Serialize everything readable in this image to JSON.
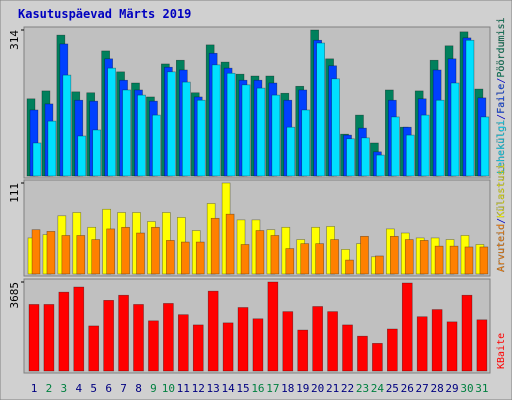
{
  "chart_data": [
    {
      "type": "bar",
      "title": "Kasutuspäevad Märts 2019",
      "legend_separator": "/",
      "ylim": [
        0,
        314
      ],
      "yticks": [
        314
      ],
      "series": [
        {
          "name": "Pöördumisi",
          "color": "#00805c",
          "values": [
            166,
            183,
            303,
            181,
            179,
            269,
            224,
            200,
            170,
            241,
            249,
            179,
            282,
            245,
            219,
            215,
            215,
            178,
            193,
            314,
            252,
            90,
            131,
            71,
            185,
            105,
            183,
            249,
            280,
            310,
            187
          ]
        },
        {
          "name": "Faile",
          "color": "#0040ff",
          "values": [
            142,
            155,
            284,
            163,
            161,
            252,
            206,
            185,
            161,
            234,
            228,
            170,
            264,
            232,
            206,
            206,
            200,
            163,
            185,
            292,
            237,
            88,
            103,
            52,
            163,
            105,
            166,
            228,
            252,
            297,
            168
          ]
        },
        {
          "name": "Lehekülgi",
          "color": "#00e0ff",
          "values": [
            71,
            118,
            217,
            86,
            99,
            232,
            185,
            174,
            131,
            224,
            202,
            163,
            239,
            221,
            196,
            189,
            174,
            105,
            142,
            286,
            209,
            80,
            82,
            45,
            127,
            88,
            131,
            163,
            200,
            292,
            127
          ]
        }
      ]
    },
    {
      "type": "bar",
      "ylim": [
        0,
        111
      ],
      "yticks": [
        111
      ],
      "series": [
        {
          "name": "Külastusi",
          "color": "#ffff00",
          "values": [
            44,
            48,
            71,
            75,
            57,
            79,
            75,
            75,
            64,
            75,
            69,
            53,
            86,
            111,
            66,
            66,
            54,
            57,
            42,
            57,
            58,
            30,
            37,
            21,
            55,
            50,
            44,
            44,
            42,
            47,
            36
          ]
        },
        {
          "name": "Arvuteid",
          "color": "#ff8000",
          "values": [
            54,
            52,
            47,
            47,
            42,
            55,
            57,
            50,
            57,
            41,
            39,
            39,
            68,
            73,
            36,
            53,
            47,
            31,
            37,
            37,
            42,
            17,
            46,
            22,
            46,
            42,
            41,
            34,
            34,
            33,
            33
          ]
        }
      ]
    },
    {
      "type": "bar",
      "ylim": [
        0,
        3685
      ],
      "yticks": [
        3685
      ],
      "series": [
        {
          "name": "KBaite",
          "color": "#ff0000",
          "values": [
            2756,
            2756,
            3265,
            3477,
            1866,
            2926,
            3138,
            2756,
            2078,
            2798,
            2332,
            1908,
            3307,
            1993,
            2629,
            2162,
            3685,
            2459,
            1696,
            2671,
            2459,
            1908,
            1442,
            1145,
            1739,
            3643,
            2247,
            2544,
            2035,
            3138,
            2120
          ]
        }
      ],
      "categories": [
        "1",
        "2",
        "3",
        "4",
        "5",
        "6",
        "7",
        "8",
        "9",
        "10",
        "11",
        "12",
        "13",
        "14",
        "15",
        "16",
        "17",
        "18",
        "19",
        "20",
        "21",
        "22",
        "23",
        "24",
        "25",
        "26",
        "27",
        "28",
        "29",
        "30",
        "31"
      ],
      "weekend_days": [
        2,
        3,
        9,
        10,
        16,
        17,
        23,
        24,
        30,
        31
      ],
      "weekend_color": "#008040",
      "weekday_color": "#000080"
    }
  ]
}
